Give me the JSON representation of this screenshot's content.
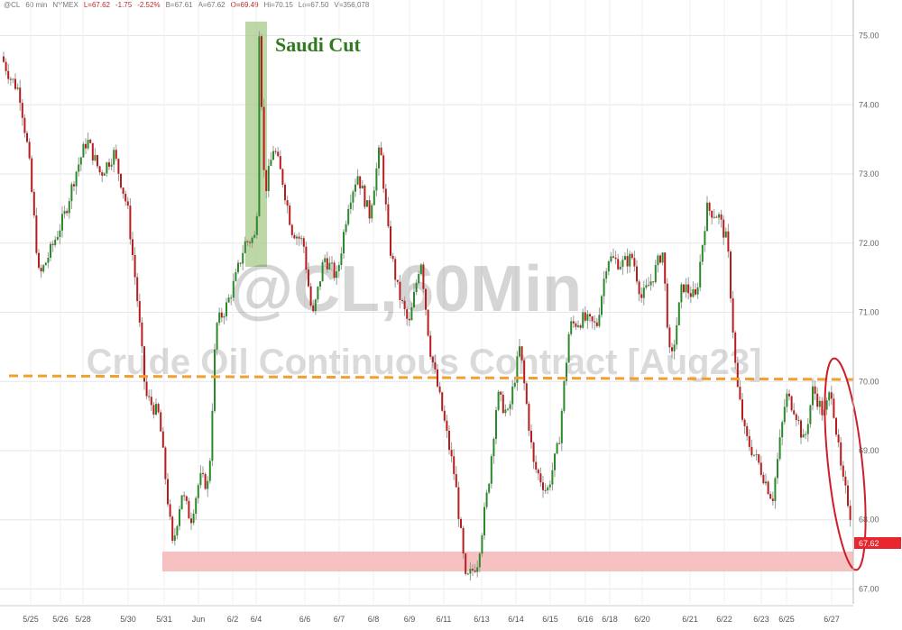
{
  "header": {
    "symbol": "@CL",
    "interval": "60 min",
    "exchange": "NYMEX",
    "last": "L=67.62",
    "change": "-1.75",
    "change_pct": "-2.52%",
    "bid": "B=67.61",
    "ask": "A=67.62",
    "open": "O=69.49",
    "high": "Hi=70.15",
    "low": "Lo=67.50",
    "volume": "V=356,078"
  },
  "watermark": {
    "line1": "@CL,60Min",
    "line2": "Crude Oil Continuous Contract [Aug23]"
  },
  "annotations": {
    "saudi_cut": "Saudi Cut",
    "price_label": "67.62"
  },
  "colors": {
    "up": "#2a8a2a",
    "down": "#b81c1c",
    "wick": "#999999",
    "support_band": "#f4b6b6",
    "resistance_line": "#f0a030",
    "highlight_band": "#a8c98a",
    "circle": "#cc1f2a",
    "price_tag": "#e8262e",
    "annotation_text": "#2f7a1f"
  },
  "chart_data": {
    "type": "candlestick",
    "y_axis_side": "right",
    "ylim": [
      66.85,
      75.45
    ],
    "y_ticks": [
      "75.00",
      "74.00",
      "73.00",
      "72.00",
      "71.00",
      "70.00",
      "69.00",
      "68.00",
      "67.00"
    ],
    "x_ticks": [
      "5/25",
      "5/26",
      "5/28",
      "5/30",
      "5/31",
      "Jun",
      "6/2",
      "6/4",
      "6/6",
      "6/7",
      "6/8",
      "6/9",
      "6/11",
      "6/13",
      "6/14",
      "6/15",
      "6/16",
      "6/18",
      "6/20",
      "6/21",
      "6/22",
      "6/23",
      "6/25",
      "6/27"
    ],
    "x_range": [
      0,
      940
    ],
    "price_path": [
      [
        0,
        74.7
      ],
      [
        10,
        74.4
      ],
      [
        20,
        74.2
      ],
      [
        30,
        73.3
      ],
      [
        42,
        71.5
      ],
      [
        55,
        71.9
      ],
      [
        70,
        72.4
      ],
      [
        82,
        73.0
      ],
      [
        95,
        73.5
      ],
      [
        110,
        73.0
      ],
      [
        125,
        73.3
      ],
      [
        140,
        72.5
      ],
      [
        150,
        71.3
      ],
      [
        160,
        69.8
      ],
      [
        175,
        69.5
      ],
      [
        190,
        67.6
      ],
      [
        200,
        68.4
      ],
      [
        210,
        68.0
      ],
      [
        220,
        68.6
      ],
      [
        230,
        68.5
      ],
      [
        238,
        70.8
      ],
      [
        250,
        71.1
      ],
      [
        260,
        71.5
      ],
      [
        270,
        72.0
      ],
      [
        283,
        72.1
      ],
      [
        286,
        75.1
      ],
      [
        292,
        72.7
      ],
      [
        302,
        73.4
      ],
      [
        312,
        72.9
      ],
      [
        322,
        72.2
      ],
      [
        335,
        72.0
      ],
      [
        345,
        70.9
      ],
      [
        358,
        71.8
      ],
      [
        372,
        71.5
      ],
      [
        385,
        72.6
      ],
      [
        395,
        73.0
      ],
      [
        408,
        72.4
      ],
      [
        420,
        73.4
      ],
      [
        430,
        72.0
      ],
      [
        440,
        71.3
      ],
      [
        452,
        70.8
      ],
      [
        465,
        71.8
      ],
      [
        475,
        70.5
      ],
      [
        490,
        69.5
      ],
      [
        503,
        68.6
      ],
      [
        515,
        67.1
      ],
      [
        528,
        67.4
      ],
      [
        540,
        68.5
      ],
      [
        550,
        69.8
      ],
      [
        562,
        69.5
      ],
      [
        575,
        70.5
      ],
      [
        590,
        68.8
      ],
      [
        605,
        68.4
      ],
      [
        618,
        69.1
      ],
      [
        630,
        70.8
      ],
      [
        645,
        70.9
      ],
      [
        660,
        70.8
      ],
      [
        672,
        71.8
      ],
      [
        688,
        71.7
      ],
      [
        700,
        71.8
      ],
      [
        710,
        71.2
      ],
      [
        722,
        71.5
      ],
      [
        733,
        71.9
      ],
      [
        742,
        70.2
      ],
      [
        755,
        71.4
      ],
      [
        770,
        71.2
      ],
      [
        782,
        72.5
      ],
      [
        795,
        72.4
      ],
      [
        805,
        72.0
      ],
      [
        815,
        70.0
      ],
      [
        825,
        69.2
      ],
      [
        840,
        68.8
      ],
      [
        855,
        68.3
      ],
      [
        870,
        69.8
      ],
      [
        880,
        69.6
      ],
      [
        890,
        69.1
      ],
      [
        900,
        69.9
      ],
      [
        912,
        69.5
      ],
      [
        920,
        69.9
      ],
      [
        932,
        68.6
      ],
      [
        940,
        68.2
      ],
      [
        946,
        67.62
      ]
    ]
  }
}
